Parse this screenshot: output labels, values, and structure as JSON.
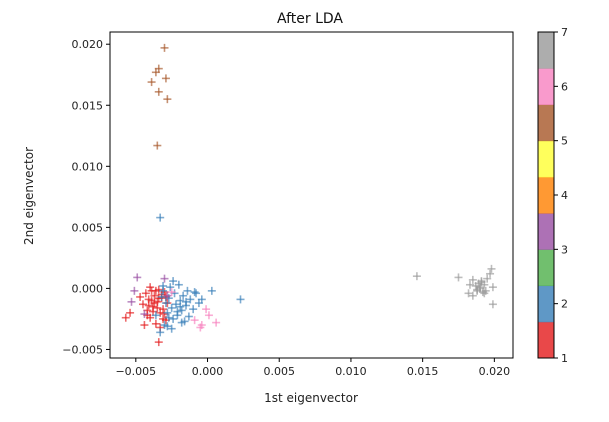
{
  "chart_data": {
    "type": "scatter",
    "title": "After LDA",
    "xlabel": "1st eigenvector",
    "ylabel": "2nd eigenvector",
    "xlim": [
      -0.0068,
      0.0213
    ],
    "ylim": [
      -0.0057,
      0.021
    ],
    "xticks": [
      -0.005,
      0.0,
      0.005,
      0.01,
      0.015,
      0.02
    ],
    "xtick_labels": [
      "−0.005",
      "0.000",
      "0.005",
      "0.010",
      "0.015",
      "0.020"
    ],
    "yticks": [
      -0.005,
      0.0,
      0.005,
      0.01,
      0.015,
      0.02
    ],
    "ytick_labels": [
      "−0.005",
      "0.000",
      "0.005",
      "0.010",
      "0.015",
      "0.020"
    ],
    "grid": false,
    "marker": "plus",
    "colorbar": {
      "ticks": [
        1,
        2,
        3,
        4,
        5,
        6,
        7
      ],
      "tick_labels": [
        "1",
        "2",
        "3",
        "4",
        "5",
        "6",
        "7"
      ],
      "colors": [
        "#e41a1c",
        "#377eb8",
        "#4daf4a",
        "#984ea3",
        "#ff7f00",
        "#ffff33",
        "#a65628",
        "#f781bf",
        "#999999"
      ]
    },
    "series": [
      {
        "class": 1,
        "color": "#e41a1c",
        "x": [
          -0.0047,
          -0.0045,
          -0.0043,
          -0.0042,
          -0.0041,
          -0.004,
          -0.0039,
          -0.0038,
          -0.0037,
          -0.0036,
          -0.0035,
          -0.0034,
          -0.0033,
          -0.0032,
          -0.0031,
          -0.003,
          -0.0029,
          -0.0028,
          -0.0044,
          -0.0039,
          -0.0035,
          -0.0032,
          -0.003,
          -0.0036,
          -0.0041,
          -0.0033,
          -0.0038,
          -0.0034,
          -0.0031,
          -0.0037,
          -0.004,
          -0.0029,
          -0.0042,
          -0.0034,
          -0.0057,
          -0.0054
        ],
        "y": [
          -0.0007,
          -0.0013,
          -0.0004,
          -0.0018,
          -0.0009,
          -0.0024,
          -0.0002,
          -0.0015,
          -0.0006,
          -0.0029,
          -0.0011,
          -0.0001,
          -0.002,
          -0.0008,
          -0.0017,
          -0.0003,
          -0.0026,
          -0.0012,
          -0.003,
          -0.001,
          -0.0016,
          -0.0005,
          -0.0021,
          -0.0002,
          -0.0014,
          -0.0032,
          -0.0019,
          -0.0008,
          -0.0025,
          -0.0012,
          0.0001,
          -0.0007,
          -0.0022,
          -0.0044,
          -0.0024,
          -0.002
        ]
      },
      {
        "class": 2,
        "color": "#377eb8",
        "x": [
          -0.0033,
          -0.0031,
          -0.0029,
          -0.0028,
          -0.0027,
          -0.0026,
          -0.0025,
          -0.0024,
          -0.0023,
          -0.0022,
          -0.0021,
          -0.002,
          -0.0019,
          -0.0018,
          -0.0017,
          -0.0016,
          -0.0015,
          -0.0014,
          -0.0012,
          -0.001,
          -0.0008,
          -0.0006,
          -0.003,
          -0.0027,
          -0.0024,
          -0.0021,
          -0.0018,
          -0.0015,
          -0.0032,
          -0.0025,
          -0.0019,
          -0.0013,
          -0.0009,
          -0.0004,
          0.0003,
          0.0023,
          -0.0033,
          -0.0028,
          -0.0036,
          -0.0031
        ],
        "y": [
          0.0058,
          -0.0002,
          -0.0012,
          -0.002,
          -0.0008,
          0.0001,
          -0.0016,
          -0.0025,
          -0.0004,
          -0.0013,
          -0.0022,
          0.0003,
          -0.001,
          -0.0018,
          -0.0006,
          -0.0027,
          -0.0014,
          -0.0002,
          -0.0009,
          -0.0017,
          -0.0004,
          -0.0012,
          -0.003,
          -0.0024,
          0.0006,
          -0.0019,
          -0.0028,
          -0.0011,
          -0.0007,
          -0.0033,
          -0.0015,
          -0.0023,
          -0.0003,
          -0.0009,
          -0.0002,
          -0.0009,
          -0.0036,
          -0.0031,
          -0.0022,
          0.0002
        ]
      },
      {
        "class": 3,
        "color": "#984ea3",
        "x": [
          -0.0049,
          -0.0051,
          -0.003,
          -0.0028,
          -0.0053,
          -0.0044
        ],
        "y": [
          0.0009,
          -0.0002,
          0.0008,
          -0.0006,
          -0.0011,
          -0.0021
        ]
      },
      {
        "class": 5,
        "color": "#a65628",
        "x": [
          -0.003,
          -0.0034,
          -0.0029,
          -0.0039,
          -0.0034,
          -0.0028,
          -0.0035,
          -0.0036
        ],
        "y": [
          0.0197,
          0.018,
          0.0172,
          0.0169,
          0.0161,
          0.0155,
          0.0117,
          0.0177
        ]
      },
      {
        "class": 6,
        "color": "#f781bf",
        "x": [
          -0.0009,
          -0.0001,
          -0.0005,
          0.0006,
          0.0001,
          -0.0004,
          -0.0025
        ],
        "y": [
          -0.0026,
          -0.0017,
          -0.0032,
          -0.0028,
          -0.0022,
          -0.003,
          -0.0003
        ]
      },
      {
        "class": 7,
        "color": "#999999",
        "x": [
          0.0146,
          0.0175,
          0.0182,
          0.0185,
          0.0187,
          0.0188,
          0.0189,
          0.019,
          0.0191,
          0.0192,
          0.0193,
          0.0194,
          0.0195,
          0.0197,
          0.0198,
          0.0199,
          0.0185,
          0.019,
          0.0193,
          0.0188,
          0.0199,
          0.0183,
          0.0191
        ],
        "y": [
          0.001,
          0.0009,
          -0.0004,
          0.0007,
          0.0002,
          -0.0001,
          0.0004,
          0.0,
          0.0006,
          -0.0003,
          0.0003,
          -0.0002,
          0.0008,
          0.0012,
          0.0016,
          -0.0013,
          -0.0006,
          0.0001,
          -0.0004,
          -0.0002,
          0.0001,
          0.0003,
          0.0005
        ]
      }
    ]
  }
}
